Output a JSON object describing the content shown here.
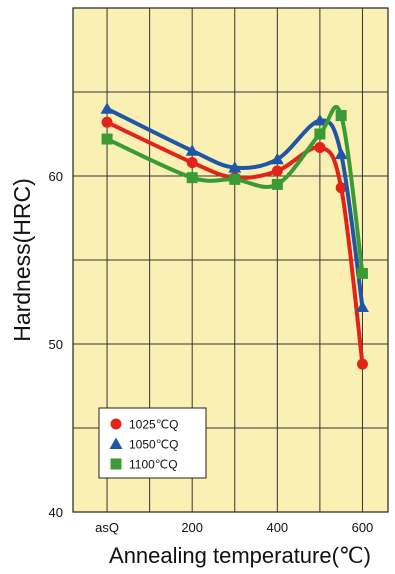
{
  "chart_data": {
    "type": "line",
    "title": "",
    "xlabel": "Annealing temperature(℃)",
    "ylabel": "Hardness(HRC)",
    "xlim": [
      -80,
      660
    ],
    "ylim": [
      40,
      70
    ],
    "x_ticks": [
      {
        "label": "asQ",
        "value": 0
      },
      {
        "label": "200",
        "value": 200
      },
      {
        "label": "400",
        "value": 400
      },
      {
        "label": "600",
        "value": 600
      }
    ],
    "y_ticks": [
      {
        "label": "40",
        "value": 40
      },
      {
        "label": "50",
        "value": 50
      },
      {
        "label": "60",
        "value": 60
      }
    ],
    "grid": true,
    "background": "#fbf0b4",
    "legend_position": "bottom-left",
    "series": [
      {
        "name": "1025℃Q",
        "color": "#e32219",
        "marker": "circle",
        "x": [
          0,
          200,
          300,
          400,
          500,
          550,
          600
        ],
        "y": [
          63.2,
          60.8,
          59.9,
          60.3,
          61.7,
          59.3,
          48.8
        ]
      },
      {
        "name": "1050℃Q",
        "color": "#1f56a8",
        "marker": "triangle",
        "x": [
          0,
          200,
          300,
          400,
          500,
          550,
          600
        ],
        "y": [
          64.0,
          61.5,
          60.5,
          61.0,
          63.3,
          61.3,
          52.2
        ]
      },
      {
        "name": "1100℃Q",
        "color": "#3a9b35",
        "marker": "square",
        "x": [
          0,
          200,
          300,
          400,
          500,
          550,
          600
        ],
        "y": [
          62.2,
          59.9,
          59.8,
          59.5,
          62.5,
          63.6,
          54.2
        ]
      }
    ]
  }
}
